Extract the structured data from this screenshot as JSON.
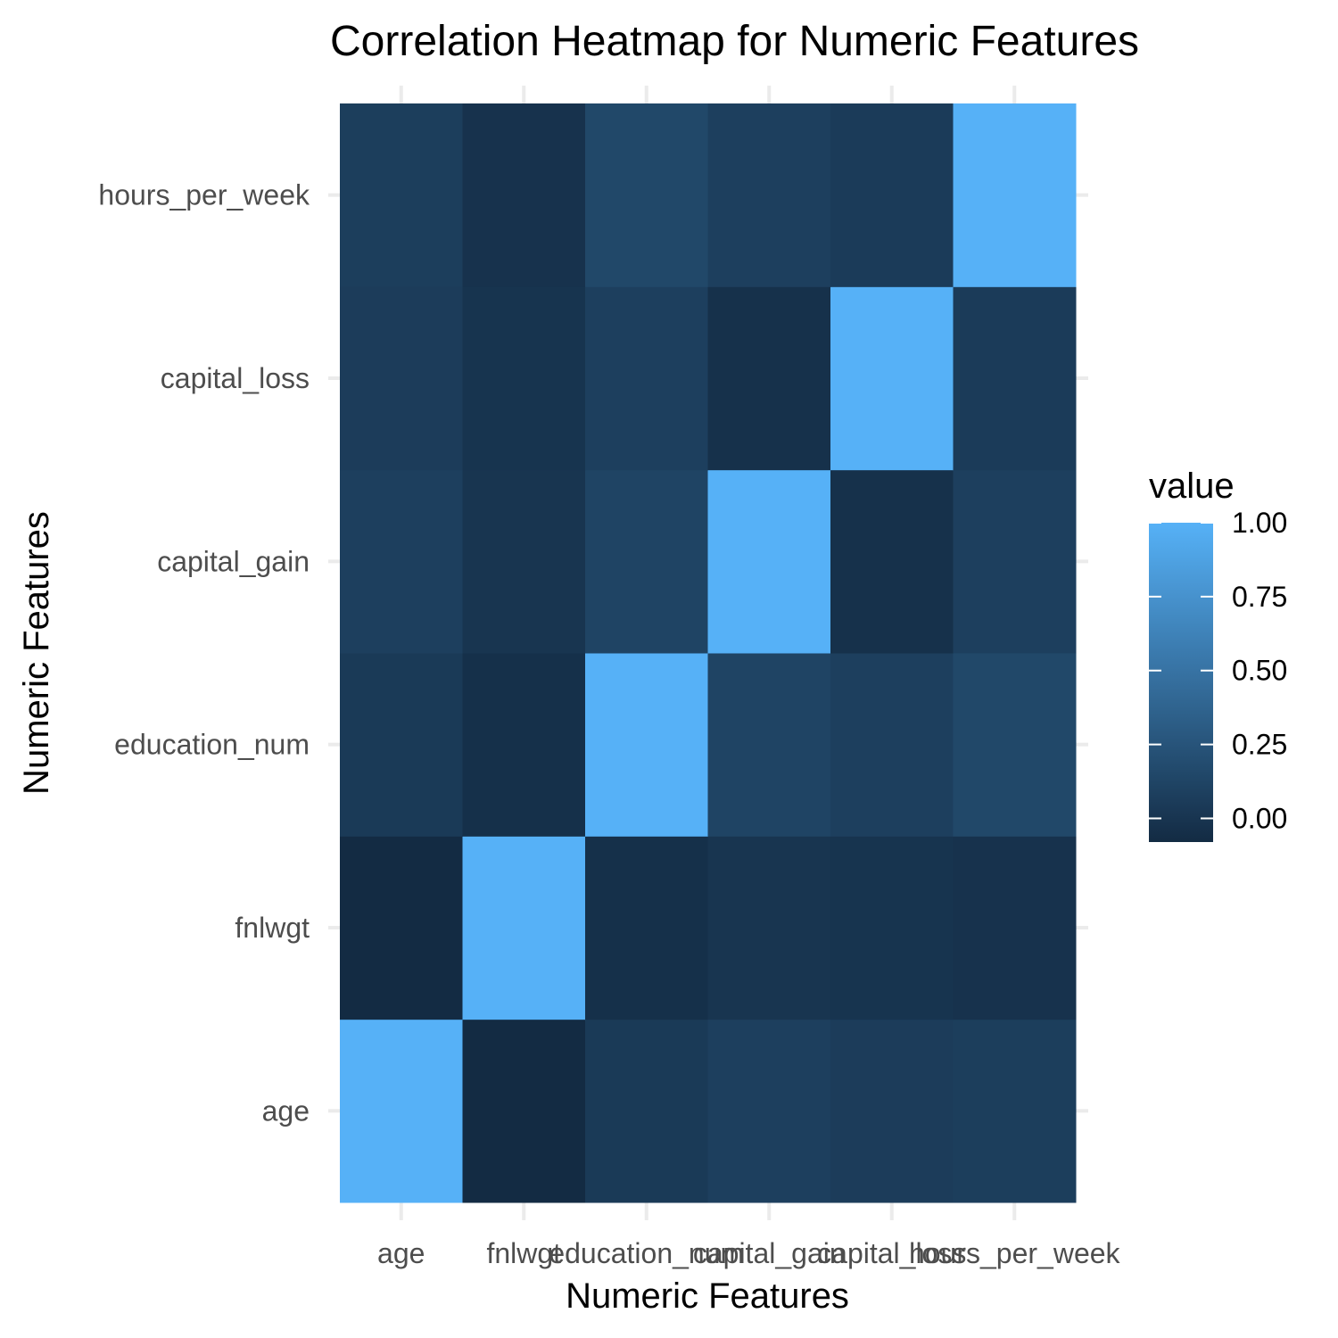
{
  "chart_data": {
    "type": "heatmap",
    "title": "Correlation Heatmap for Numeric Features",
    "xlabel": "Numeric Features",
    "ylabel": "Numeric Features",
    "x_categories": [
      "age",
      "fnlwgt",
      "education_num",
      "capital_gain",
      "capital_loss",
      "hours_per_week"
    ],
    "y_categories": [
      "age",
      "fnlwgt",
      "education_num",
      "capital_gain",
      "capital_loss",
      "hours_per_week"
    ],
    "values": [
      [
        1.0,
        -0.08,
        0.04,
        0.08,
        0.06,
        0.07
      ],
      [
        -0.08,
        1.0,
        -0.04,
        0.0,
        -0.01,
        -0.02
      ],
      [
        0.04,
        -0.04,
        1.0,
        0.12,
        0.08,
        0.15
      ],
      [
        0.08,
        0.0,
        0.12,
        1.0,
        -0.03,
        0.08
      ],
      [
        0.06,
        -0.01,
        0.08,
        -0.03,
        1.0,
        0.05
      ],
      [
        0.07,
        -0.02,
        0.15,
        0.08,
        0.05,
        1.0
      ]
    ],
    "legend": {
      "title": "value",
      "ticks": [
        1.0,
        0.75,
        0.5,
        0.25,
        0.0
      ],
      "tick_labels": [
        "1.00",
        "0.75",
        "0.50",
        "0.25",
        "0.00"
      ],
      "range": [
        -0.08,
        1.0
      ],
      "color_low": "#132B43",
      "color_high": "#56B1F7",
      "placement": "right"
    },
    "grid": true
  }
}
